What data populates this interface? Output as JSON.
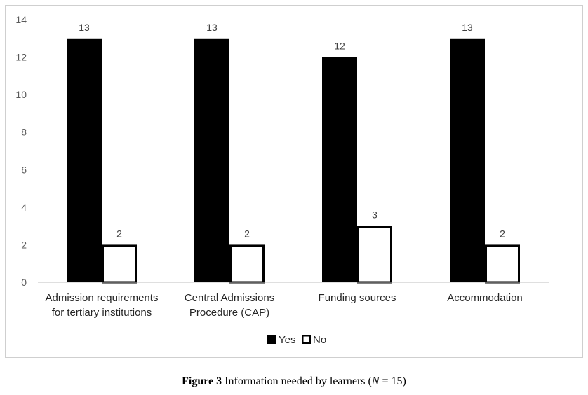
{
  "chart_data": {
    "type": "bar",
    "categories": [
      [
        "Admission requirements",
        "for tertiary institutions"
      ],
      [
        "Central Admissions",
        "Procedure (CAP)"
      ],
      [
        "Funding sources"
      ],
      [
        "Accommodation"
      ]
    ],
    "series": [
      {
        "name": "Yes",
        "values": [
          13,
          13,
          12,
          13
        ],
        "fill": "#000000",
        "stroke": "#000000"
      },
      {
        "name": "No",
        "values": [
          2,
          2,
          3,
          2
        ],
        "fill": "#ffffff",
        "stroke": "#000000"
      }
    ],
    "yticks": [
      "0",
      "2",
      "4",
      "6",
      "8",
      "10",
      "12",
      "14"
    ],
    "ylim": [
      0,
      14
    ],
    "legend_position": "bottom-center",
    "grid": false
  },
  "caption": {
    "label": "Figure 3",
    "text_before": " Information needed by learners (",
    "variable": "N",
    "text_after": " = 15)"
  }
}
